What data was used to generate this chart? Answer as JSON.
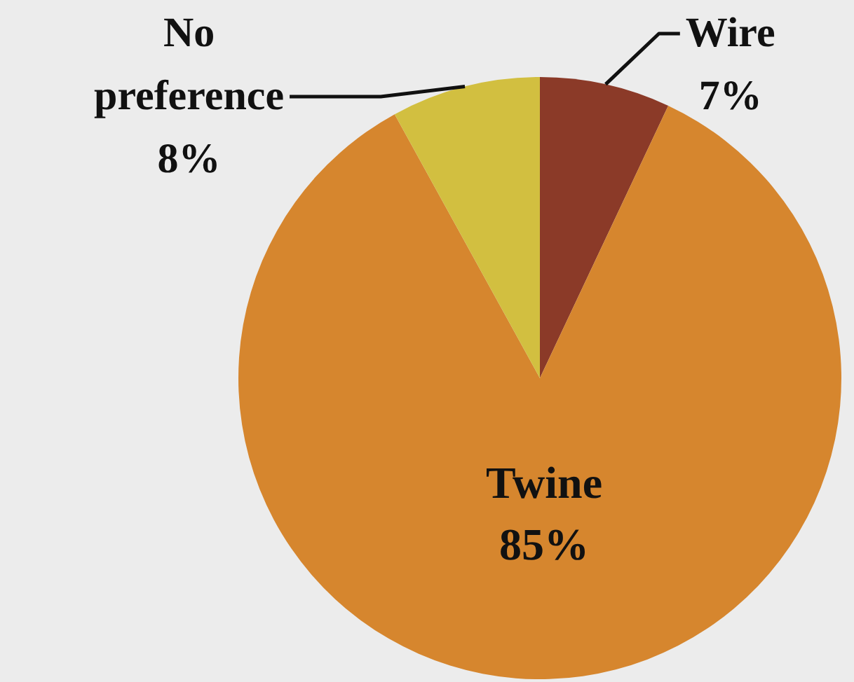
{
  "chart_data": {
    "type": "pie",
    "categories": [
      "Wire",
      "Twine",
      "No preference"
    ],
    "values": [
      7,
      85,
      8
    ],
    "colors": [
      "#8b3a28",
      "#d6862e",
      "#d2bf40"
    ],
    "value_labels": [
      "7%",
      "85%",
      "8%"
    ]
  }
}
